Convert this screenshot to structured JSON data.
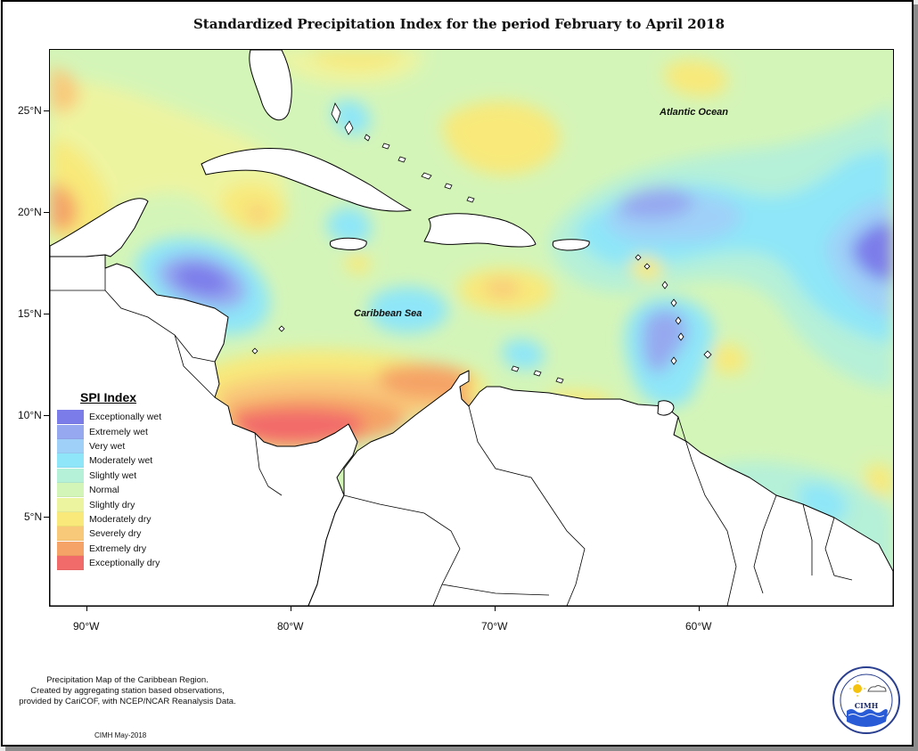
{
  "title": "Standardized Precipitation Index for the period February to April 2018",
  "map": {
    "lat_labels": [
      "25°N",
      "20°N",
      "15°N",
      "10°N",
      "5°N"
    ],
    "lon_labels": [
      "90°W",
      "80°W",
      "70°W",
      "60°W"
    ],
    "ocean_labels": {
      "atlantic": "Atlantic Ocean",
      "caribbean": "Caribbean Sea"
    }
  },
  "legend": {
    "title": "SPI Index",
    "items": [
      {
        "label": "Exceptionally wet",
        "color": "#7b7bea"
      },
      {
        "label": "Extremely wet",
        "color": "#96a9f0"
      },
      {
        "label": "Very wet",
        "color": "#9fd1f8"
      },
      {
        "label": "Moderately wet",
        "color": "#8ee6f8"
      },
      {
        "label": "Slightly wet",
        "color": "#b5f0d8"
      },
      {
        "label": "Normal",
        "color": "#d4f5b8"
      },
      {
        "label": "Slightly dry",
        "color": "#edf4a0"
      },
      {
        "label": "Moderately dry",
        "color": "#f8e97a"
      },
      {
        "label": "Severely dry",
        "color": "#f9c97a"
      },
      {
        "label": "Extremely dry",
        "color": "#f5a366"
      },
      {
        "label": "Exceptionally dry",
        "color": "#f26b6b"
      }
    ]
  },
  "footnote": [
    "Precipitation Map of the Caribbean Region.",
    "Created by aggregating station based observations,",
    "provided by CariCOF, with NCEP/NCAR Reanalysis Data."
  ],
  "credit": "CIMH May-2018",
  "logo": {
    "text": "CIMH"
  }
}
